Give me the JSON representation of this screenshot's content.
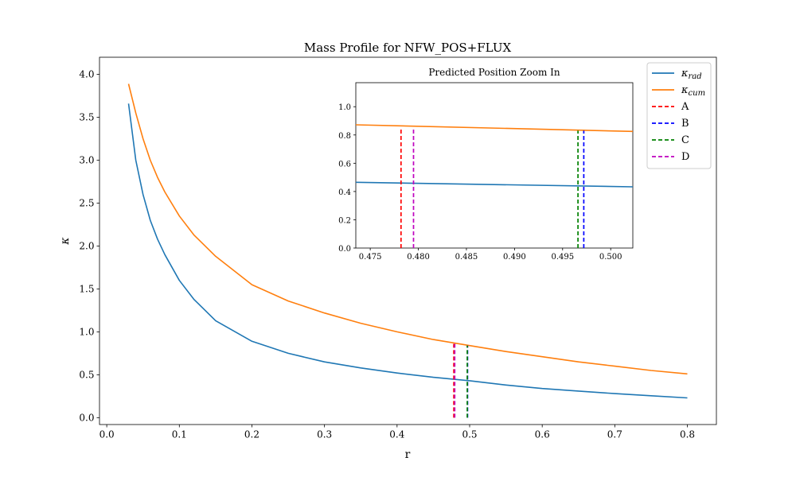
{
  "chart_data": [
    {
      "type": "line",
      "title": "Mass Profile for NFW_POS+FLUX",
      "xlabel": "r",
      "ylabel": "κ",
      "xlim": [
        -0.01,
        0.84
      ],
      "ylim": [
        -0.08,
        4.2
      ],
      "x_ticks": [
        0.0,
        0.1,
        0.2,
        0.3,
        0.4,
        0.5,
        0.6,
        0.7,
        0.8
      ],
      "y_ticks": [
        0.0,
        0.5,
        1.0,
        1.5,
        2.0,
        2.5,
        3.0,
        3.5,
        4.0
      ],
      "grid": false,
      "legend_position": "upper-right",
      "series": [
        {
          "name": "κ_rad",
          "color": "#1f77b4",
          "x": [
            0.03,
            0.04,
            0.05,
            0.06,
            0.07,
            0.08,
            0.1,
            0.12,
            0.15,
            0.2,
            0.25,
            0.3,
            0.35,
            0.4,
            0.45,
            0.5,
            0.55,
            0.6,
            0.65,
            0.7,
            0.75,
            0.8
          ],
          "y": [
            3.66,
            3.0,
            2.6,
            2.3,
            2.08,
            1.9,
            1.6,
            1.38,
            1.13,
            0.89,
            0.75,
            0.65,
            0.58,
            0.52,
            0.47,
            0.43,
            0.38,
            0.34,
            0.31,
            0.28,
            0.255,
            0.23
          ]
        },
        {
          "name": "κ_cum",
          "color": "#ff7f0e",
          "x": [
            0.03,
            0.04,
            0.05,
            0.06,
            0.07,
            0.08,
            0.1,
            0.12,
            0.15,
            0.2,
            0.25,
            0.3,
            0.35,
            0.4,
            0.45,
            0.5,
            0.55,
            0.6,
            0.65,
            0.7,
            0.75,
            0.8
          ],
          "y": [
            3.89,
            3.55,
            3.25,
            3.0,
            2.8,
            2.63,
            2.35,
            2.13,
            1.88,
            1.55,
            1.36,
            1.22,
            1.1,
            1.0,
            0.91,
            0.84,
            0.77,
            0.71,
            0.65,
            0.6,
            0.55,
            0.51
          ]
        }
      ],
      "markers": [
        {
          "name": "A",
          "x": 0.4782,
          "y_top": 0.86,
          "color": "#ff0000"
        },
        {
          "name": "B",
          "x": 0.4972,
          "y_top": 0.84,
          "color": "#0000ff"
        },
        {
          "name": "C",
          "x": 0.4967,
          "y_top": 0.84,
          "color": "#008000"
        },
        {
          "name": "D",
          "x": 0.4795,
          "y_top": 0.86,
          "color": "#bf00bf"
        }
      ]
    },
    {
      "type": "line",
      "title": "Predicted Position Zoom In",
      "xlim": [
        0.4735,
        0.5023
      ],
      "ylim": [
        0.0,
        1.17
      ],
      "x_ticks": [
        0.475,
        0.48,
        0.485,
        0.49,
        0.495,
        0.5
      ],
      "y_ticks": [
        0.0,
        0.2,
        0.4,
        0.6,
        0.8,
        1.0
      ],
      "series": [
        {
          "name": "κ_rad",
          "color": "#1f77b4",
          "x": [
            0.4735,
            0.5023
          ],
          "y": [
            0.465,
            0.433
          ]
        },
        {
          "name": "κ_cum",
          "color": "#ff7f0e",
          "x": [
            0.4735,
            0.5023
          ],
          "y": [
            0.872,
            0.825
          ]
        }
      ],
      "markers": [
        {
          "name": "A",
          "x": 0.4782,
          "y_top": 0.85,
          "color": "#ff0000"
        },
        {
          "name": "B",
          "x": 0.4972,
          "y_top": 0.83,
          "color": "#0000ff"
        },
        {
          "name": "C",
          "x": 0.4966,
          "y_top": 0.83,
          "color": "#008000"
        },
        {
          "name": "D",
          "x": 0.4795,
          "y_top": 0.85,
          "color": "#bf00bf"
        }
      ]
    }
  ]
}
